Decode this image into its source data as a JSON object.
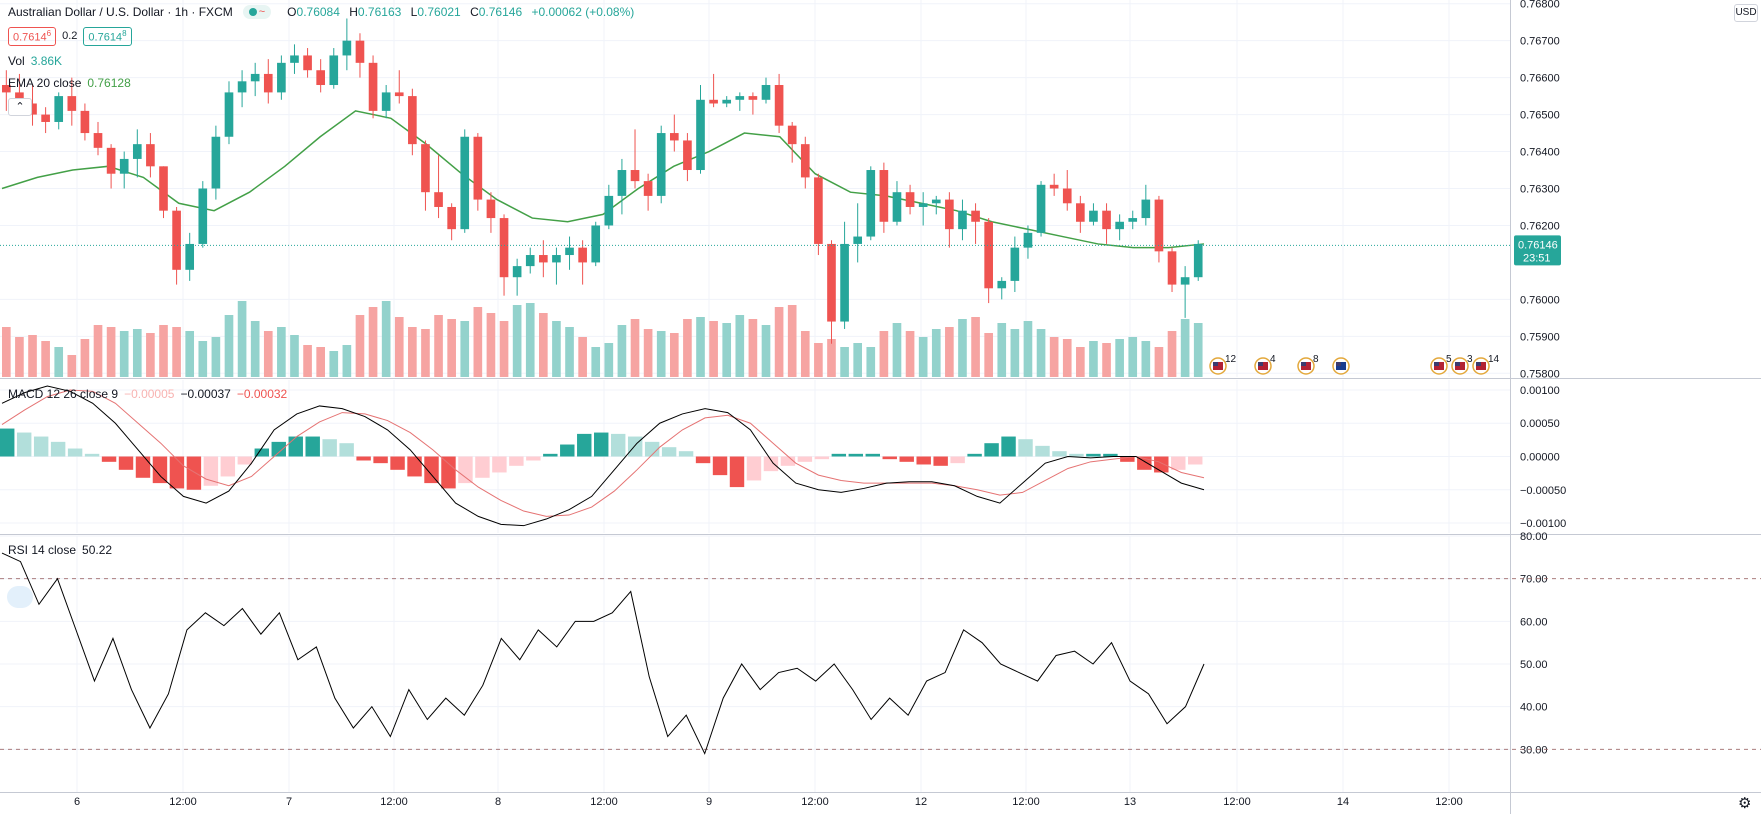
{
  "header": {
    "symbol": "Australian Dollar / U.S. Dollar · 1h · FXCM",
    "open_label": "O",
    "open": "0.76084",
    "high_label": "H",
    "high": "0.76163",
    "low_label": "L",
    "low": "0.76021",
    "close_label": "C",
    "close": "0.76146",
    "change": "+0.00062 (+0.08%)",
    "status_icon": "~"
  },
  "quote": {
    "sell_main": "0.7614",
    "sell_small": "6",
    "spread": "0.2",
    "buy_main": "0.7614",
    "buy_small": "8"
  },
  "volume_legend": {
    "label": "Vol",
    "value": "3.86K"
  },
  "ema_legend": {
    "label": "EMA 20 close",
    "value": "0.76128"
  },
  "macd_legend": {
    "label": "MACD 12 26 close 9",
    "hist": "−0.00005",
    "macd": "−0.00037",
    "signal": "−0.00032"
  },
  "rsi_legend": {
    "label": "RSI 14 close",
    "value": "50.22"
  },
  "price_axis": {
    "currency": "USD",
    "ticks": [
      "0.76800",
      "0.76700",
      "0.76600",
      "0.76500",
      "0.76400",
      "0.76300",
      "0.76200",
      "0.76000",
      "0.75900",
      "0.75800"
    ],
    "last_price": "0.76146",
    "countdown": "23:51"
  },
  "macd_axis": {
    "ticks": [
      "0.00100",
      "0.00050",
      "0.00000",
      "−0.00050",
      "−0.00100"
    ]
  },
  "rsi_axis": {
    "ticks": [
      "80.00",
      "70.00",
      "60.00",
      "50.00",
      "40.00",
      "30.00"
    ]
  },
  "time_axis": {
    "labels": [
      "6",
      "12:00",
      "7",
      "12:00",
      "8",
      "12:00",
      "9",
      "12:00",
      "12",
      "12:00",
      "13",
      "12:00",
      "14",
      "12:00"
    ]
  },
  "events": [
    {
      "icon": "us-flag-icon",
      "count": "12"
    },
    {
      "icon": "us-flag-icon",
      "count": "4"
    },
    {
      "icon": "us-flag-icon",
      "count": "8"
    },
    {
      "icon": "au-flag-icon",
      "count": ""
    },
    {
      "icon": "us-flag-icon",
      "count": "5"
    },
    {
      "icon": "us-flag-icon",
      "count": "3"
    },
    {
      "icon": "us-flag-icon",
      "count": "14"
    }
  ],
  "colors": {
    "up": "#26a69a",
    "down": "#ef5350",
    "ema": "#43a047",
    "macd": "#000000",
    "signal": "#e57373",
    "vol_up": "#93d2cc",
    "vol_down": "#f6a4a2",
    "grid": "#f0f3fa"
  },
  "chart_data": {
    "type": "candlestick",
    "title": "Australian Dollar / U.S. Dollar · 1h · FXCM",
    "price_ylim": [
      0.7579,
      0.7681
    ],
    "candles": [
      [
        0.7658,
        0.7662,
        0.7651,
        0.7656
      ],
      [
        0.7656,
        0.7661,
        0.765,
        0.7653
      ],
      [
        0.7653,
        0.7658,
        0.7647,
        0.765
      ],
      [
        0.765,
        0.7652,
        0.7645,
        0.7648
      ],
      [
        0.7648,
        0.7656,
        0.7646,
        0.7655
      ],
      [
        0.7655,
        0.766,
        0.7647,
        0.7651
      ],
      [
        0.7651,
        0.7653,
        0.7643,
        0.7645
      ],
      [
        0.7645,
        0.7648,
        0.7639,
        0.7641
      ],
      [
        0.7641,
        0.7642,
        0.763,
        0.7634
      ],
      [
        0.7634,
        0.764,
        0.763,
        0.7638
      ],
      [
        0.7638,
        0.7646,
        0.7633,
        0.7642
      ],
      [
        0.7642,
        0.7645,
        0.7633,
        0.7636
      ],
      [
        0.7636,
        0.7636,
        0.7622,
        0.7624
      ],
      [
        0.7624,
        0.7625,
        0.7604,
        0.7608
      ],
      [
        0.7608,
        0.7618,
        0.7605,
        0.7615
      ],
      [
        0.7615,
        0.7632,
        0.7614,
        0.763
      ],
      [
        0.763,
        0.7647,
        0.7627,
        0.7644
      ],
      [
        0.7644,
        0.7659,
        0.7642,
        0.7656
      ],
      [
        0.7656,
        0.7662,
        0.7652,
        0.7659
      ],
      [
        0.7659,
        0.7664,
        0.7655,
        0.7661
      ],
      [
        0.7661,
        0.7665,
        0.7653,
        0.7656
      ],
      [
        0.7656,
        0.7666,
        0.7654,
        0.7664
      ],
      [
        0.7664,
        0.7669,
        0.7661,
        0.7666
      ],
      [
        0.7666,
        0.7668,
        0.766,
        0.7662
      ],
      [
        0.7662,
        0.7665,
        0.7656,
        0.7658
      ],
      [
        0.7658,
        0.7668,
        0.7657,
        0.7666
      ],
      [
        0.7666,
        0.7676,
        0.7662,
        0.767
      ],
      [
        0.767,
        0.7672,
        0.766,
        0.7664
      ],
      [
        0.7664,
        0.7666,
        0.7649,
        0.7651
      ],
      [
        0.7651,
        0.7658,
        0.7649,
        0.7656
      ],
      [
        0.7656,
        0.7662,
        0.7653,
        0.7655
      ],
      [
        0.7655,
        0.7657,
        0.7639,
        0.7642
      ],
      [
        0.7642,
        0.7643,
        0.7624,
        0.7629
      ],
      [
        0.7629,
        0.7639,
        0.7622,
        0.7625
      ],
      [
        0.7625,
        0.7626,
        0.7616,
        0.7619
      ],
      [
        0.7619,
        0.7646,
        0.7618,
        0.7644
      ],
      [
        0.7644,
        0.7645,
        0.7624,
        0.7627
      ],
      [
        0.7627,
        0.7629,
        0.7618,
        0.7622
      ],
      [
        0.7622,
        0.7623,
        0.7601,
        0.7606
      ],
      [
        0.7606,
        0.7611,
        0.7601,
        0.7609
      ],
      [
        0.7609,
        0.7614,
        0.7607,
        0.7612
      ],
      [
        0.7612,
        0.7616,
        0.7606,
        0.761
      ],
      [
        0.761,
        0.7614,
        0.7604,
        0.7612
      ],
      [
        0.7612,
        0.7617,
        0.7608,
        0.7614
      ],
      [
        0.7614,
        0.7616,
        0.7604,
        0.761
      ],
      [
        0.761,
        0.7621,
        0.7609,
        0.762
      ],
      [
        0.762,
        0.7631,
        0.7619,
        0.7628
      ],
      [
        0.7628,
        0.7638,
        0.7623,
        0.7635
      ],
      [
        0.7635,
        0.7646,
        0.763,
        0.7632
      ],
      [
        0.7632,
        0.7634,
        0.7624,
        0.7628
      ],
      [
        0.7628,
        0.7647,
        0.7626,
        0.7645
      ],
      [
        0.7645,
        0.765,
        0.764,
        0.7643
      ],
      [
        0.7643,
        0.7645,
        0.7632,
        0.7635
      ],
      [
        0.7635,
        0.7658,
        0.7634,
        0.7654
      ],
      [
        0.7654,
        0.7661,
        0.7652,
        0.7653
      ],
      [
        0.7653,
        0.7655,
        0.7652,
        0.7654
      ],
      [
        0.7654,
        0.7656,
        0.7651,
        0.7655
      ],
      [
        0.7655,
        0.7656,
        0.765,
        0.7654
      ],
      [
        0.7654,
        0.766,
        0.7653,
        0.7658
      ],
      [
        0.7658,
        0.7661,
        0.7645,
        0.7647
      ],
      [
        0.7647,
        0.7648,
        0.7637,
        0.7642
      ],
      [
        0.7642,
        0.7644,
        0.763,
        0.7633
      ],
      [
        0.7633,
        0.7634,
        0.7612,
        0.7615
      ],
      [
        0.7615,
        0.7616,
        0.7588,
        0.7594
      ],
      [
        0.7594,
        0.7621,
        0.7592,
        0.7615
      ],
      [
        0.7615,
        0.7626,
        0.761,
        0.7617
      ],
      [
        0.7617,
        0.7636,
        0.7616,
        0.7635
      ],
      [
        0.7635,
        0.7637,
        0.7618,
        0.7621
      ],
      [
        0.7621,
        0.7632,
        0.762,
        0.7629
      ],
      [
        0.7629,
        0.7631,
        0.7623,
        0.7625
      ],
      [
        0.7625,
        0.7629,
        0.762,
        0.7626
      ],
      [
        0.7626,
        0.7628,
        0.7623,
        0.7627
      ],
      [
        0.7627,
        0.7629,
        0.7614,
        0.7619
      ],
      [
        0.7619,
        0.7627,
        0.7616,
        0.7624
      ],
      [
        0.7624,
        0.7626,
        0.7615,
        0.7621
      ],
      [
        0.7621,
        0.7622,
        0.7599,
        0.7603
      ],
      [
        0.7603,
        0.7606,
        0.76,
        0.7605
      ],
      [
        0.7605,
        0.7617,
        0.7602,
        0.7614
      ],
      [
        0.7614,
        0.762,
        0.7611,
        0.7618
      ],
      [
        0.7618,
        0.7632,
        0.7617,
        0.7631
      ],
      [
        0.7631,
        0.7634,
        0.7628,
        0.763
      ],
      [
        0.763,
        0.7635,
        0.7624,
        0.7626
      ],
      [
        0.7626,
        0.7628,
        0.7618,
        0.7621
      ],
      [
        0.7621,
        0.7626,
        0.762,
        0.7624
      ],
      [
        0.7624,
        0.7626,
        0.7615,
        0.7619
      ],
      [
        0.7619,
        0.7623,
        0.7616,
        0.7621
      ],
      [
        0.7621,
        0.7624,
        0.7619,
        0.7622
      ],
      [
        0.7622,
        0.7631,
        0.762,
        0.7627
      ],
      [
        0.7627,
        0.7628,
        0.761,
        0.7613
      ],
      [
        0.7613,
        0.7614,
        0.7602,
        0.7604
      ],
      [
        0.7604,
        0.7609,
        0.7595,
        0.7606
      ],
      [
        0.7606,
        0.7616,
        0.7605,
        0.7615
      ]
    ],
    "ema20": [
      0.763,
      0.7633,
      0.7635,
      0.7636,
      0.7633,
      0.7626,
      0.7624,
      0.7629,
      0.7636,
      0.7644,
      0.7651,
      0.7649,
      0.7642,
      0.7634,
      0.7627,
      0.7622,
      0.7621,
      0.7623,
      0.763,
      0.7636,
      0.764,
      0.7645,
      0.7644,
      0.7634,
      0.7629,
      0.7628,
      0.7626,
      0.7624,
      0.7621,
      0.7619,
      0.7617,
      0.7615,
      0.7614,
      0.7614,
      0.7615
    ],
    "volume_relative": [
      0.5,
      0.4,
      0.42,
      0.36,
      0.3,
      0.22,
      0.38,
      0.52,
      0.5,
      0.46,
      0.48,
      0.44,
      0.52,
      0.5,
      0.46,
      0.36,
      0.4,
      0.62,
      0.76,
      0.56,
      0.46,
      0.5,
      0.42,
      0.32,
      0.3,
      0.26,
      0.32,
      0.62,
      0.7,
      0.76,
      0.6,
      0.5,
      0.48,
      0.62,
      0.58,
      0.56,
      0.7,
      0.64,
      0.56,
      0.72,
      0.74,
      0.64,
      0.56,
      0.5,
      0.4,
      0.3,
      0.34,
      0.52,
      0.58,
      0.48,
      0.46,
      0.44,
      0.58,
      0.6,
      0.56,
      0.54,
      0.62,
      0.58,
      0.52,
      0.7,
      0.72,
      0.46,
      0.34,
      0.38,
      0.3,
      0.34,
      0.3,
      0.46,
      0.54,
      0.46,
      0.4,
      0.48,
      0.5,
      0.58,
      0.6,
      0.44,
      0.54,
      0.48,
      0.56,
      0.48,
      0.4,
      0.38,
      0.3,
      0.36,
      0.34,
      0.38,
      0.4,
      0.36,
      0.3,
      0.46,
      0.58,
      0.54
    ],
    "macd_ylim": [
      -0.00115,
      0.00115
    ],
    "macd_histogram": [
      0.00042,
      0.00036,
      0.0003,
      0.00022,
      0.00012,
      4e-05,
      -8e-05,
      -0.0002,
      -0.00032,
      -0.0004,
      -0.00048,
      -0.0005,
      -0.00044,
      -0.0003,
      -0.00012,
      0.00012,
      0.00022,
      0.0003,
      0.0003,
      0.00026,
      0.0002,
      -6e-05,
      -0.0001,
      -0.0002,
      -0.0003,
      -0.0004,
      -0.00048,
      -0.0004,
      -0.00032,
      -0.00024,
      -0.00014,
      -6e-05,
      4e-05,
      0.00018,
      0.00034,
      0.00036,
      0.00034,
      0.0003,
      0.00022,
      0.00014,
      8e-05,
      -0.0001,
      -0.00028,
      -0.00046,
      -0.00036,
      -0.00022,
      -0.00014,
      -8e-05,
      -4e-05,
      4e-05,
      4e-05,
      4e-05,
      -4e-05,
      -8e-05,
      -0.00012,
      -0.00014,
      -0.0001,
      4e-05,
      0.0002,
      0.0003,
      0.00026,
      0.00016,
      8e-05,
      4e-05,
      4e-05,
      4e-05,
      -8e-05,
      -0.0002,
      -0.00024,
      -0.0002,
      -0.00012
    ],
    "macd_line": [
      0.0008,
      0.00096,
      0.00106,
      0.00098,
      0.0008,
      0.0005,
      0.0001,
      -0.0003,
      -0.0006,
      -0.0007,
      -0.00052,
      -0.0001,
      0.0004,
      0.00064,
      0.00076,
      0.00072,
      0.0006,
      0.0004,
      0.0001,
      -0.0003,
      -0.0007,
      -0.0009,
      -0.00102,
      -0.00104,
      -0.00094,
      -0.0008,
      -0.0006,
      -0.0002,
      0.0002,
      0.0005,
      0.00064,
      0.00072,
      0.00066,
      0.0004,
      -0.0001,
      -0.0004,
      -0.0005,
      -0.00054,
      -0.00048,
      -0.0004,
      -0.00038,
      -0.00038,
      -0.00044,
      -0.0006,
      -0.0007,
      -0.0004,
      -0.0001,
      0.0,
      -2e-05,
      0.0,
      0.0,
      -0.0002,
      -0.0004,
      -0.0005
    ],
    "signal_line": [
      0.00048,
      0.0007,
      0.0009,
      0.001,
      0.00098,
      0.0008,
      0.0005,
      0.0002,
      -0.00014,
      -0.00034,
      -0.00044,
      -0.0003,
      0.0,
      0.0003,
      0.00052,
      0.00066,
      0.00064,
      0.00054,
      0.00036,
      0.0001,
      -0.0002,
      -0.00046,
      -0.00066,
      -0.00082,
      -0.0009,
      -0.00088,
      -0.00076,
      -0.00052,
      -0.0002,
      0.00014,
      0.0004,
      0.00058,
      0.00062,
      0.0005,
      0.0002,
      -0.0001,
      -0.00028,
      -0.00036,
      -0.0004,
      -0.0004,
      -0.0004,
      -0.0004,
      -0.00044,
      -0.0005,
      -0.00058,
      -0.00054,
      -0.00036,
      -0.00018,
      -8e-05,
      -4e-05,
      0.0,
      -8e-05,
      -0.00024,
      -0.00032
    ],
    "rsi_ylim": [
      20,
      80
    ],
    "rsi_levels": [
      70,
      30
    ],
    "rsi": [
      76,
      74,
      64,
      70,
      58,
      46,
      56,
      44,
      35,
      43,
      58,
      62,
      59,
      63,
      57,
      62,
      51,
      54,
      42,
      35,
      40,
      33,
      44,
      37,
      42,
      38,
      45,
      56,
      51,
      58,
      54,
      60,
      60,
      62,
      67,
      47,
      33,
      38,
      29,
      42,
      50,
      44,
      48,
      49,
      46,
      50,
      44,
      37,
      42,
      38,
      46,
      48,
      58,
      55,
      50,
      48,
      46,
      52,
      53,
      50,
      55,
      46,
      43,
      36,
      40,
      50
    ]
  }
}
